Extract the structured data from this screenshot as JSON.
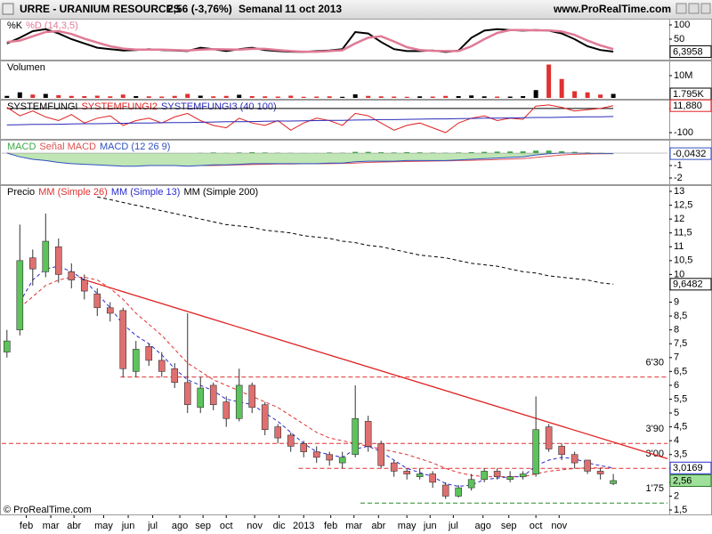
{
  "header": {
    "symbol": "URRE - URANIUM RESOURCES",
    "quote": "2,56 (-3,76%)",
    "period": "Semanal",
    "date": "11 oct 2013",
    "site": "www.ProRealTime.com"
  },
  "footer": "© ProRealTime.com",
  "chart_data": [
    {
      "type": "line",
      "xlim": [
        -0.4,
        51.2
      ],
      "ylim": [
        0,
        100
      ],
      "yticks": [
        100,
        50
      ],
      "series": [
        {
          "name": "%K",
          "color": "#000000",
          "width": 2,
          "values": [
            35,
            55,
            78,
            85,
            70,
            50,
            35,
            20,
            15,
            10,
            12,
            15,
            12,
            10,
            8,
            20,
            15,
            8,
            15,
            20,
            12,
            8,
            6,
            5,
            8,
            10,
            15,
            75,
            70,
            40,
            15,
            8,
            8,
            10,
            5,
            10,
            55,
            80,
            85,
            82,
            80,
            82,
            80,
            70,
            50,
            25,
            12,
            6.3958
          ],
          "value_labels": {
            "47": "6,3958"
          }
        },
        {
          "name": "%D (14,3,5)",
          "color": "#e07a95",
          "width": 2.5,
          "values": [
            40,
            45,
            60,
            75,
            78,
            68,
            52,
            38,
            25,
            17,
            13,
            13,
            13,
            12,
            10,
            13,
            15,
            14,
            13,
            16,
            16,
            12,
            8,
            6,
            6,
            8,
            11,
            35,
            55,
            60,
            42,
            22,
            12,
            9,
            8,
            8,
            25,
            50,
            72,
            82,
            82,
            81,
            81,
            77,
            65,
            45,
            28,
            15
          ]
        }
      ]
    },
    {
      "type": "bar",
      "xlim": [
        -0.4,
        51.2
      ],
      "ylim": [
        0,
        16000000
      ],
      "yticks": [
        {
          "value": 10000000,
          "label": "10M"
        }
      ],
      "series": [
        {
          "name": "Volumen",
          "up_color": "#000000",
          "down_color": "#e03030",
          "values": [
            900000,
            2500000,
            1500000,
            1800000,
            1200000,
            900000,
            800000,
            1000000,
            700000,
            1500000,
            800000,
            700000,
            600000,
            900000,
            1800000,
            1000000,
            700000,
            900000,
            1400000,
            800000,
            700000,
            600000,
            1000000,
            500000,
            600000,
            700000,
            500000,
            1600000,
            900000,
            700000,
            600000,
            500000,
            700000,
            600000,
            900000,
            800000,
            1100000,
            700000,
            600000,
            600000,
            800000,
            3500000,
            15000000,
            8500000,
            3000000,
            2500000,
            1500000,
            1795000
          ],
          "value_labels": {
            "47": "1.795K"
          }
        }
      ]
    },
    {
      "type": "line",
      "xlim": [
        -0.4,
        51.2
      ],
      "ylim": [
        -122,
        33
      ],
      "yticks": [
        0,
        -100
      ],
      "series": [
        {
          "name": "SYSTEMFUNGI",
          "color": "#000000",
          "width": 1,
          "values": [
            0,
            0,
            0,
            0,
            0,
            0,
            0,
            0,
            0,
            0,
            0,
            0,
            0,
            0,
            0,
            0,
            0,
            0,
            0,
            0,
            0,
            0,
            0,
            0,
            0,
            0,
            0,
            0,
            0,
            0,
            0,
            0,
            0,
            0,
            0,
            0,
            0,
            0,
            0,
            0,
            0,
            0,
            0,
            0,
            0,
            0,
            0,
            0
          ]
        },
        {
          "name": "SYSTEMFUNGI2",
          "color": "#e02020",
          "width": 1,
          "values": [
            5,
            -30,
            -10,
            -35,
            -50,
            -25,
            -60,
            -40,
            -30,
            -70,
            -50,
            -40,
            -60,
            -35,
            -20,
            -50,
            -70,
            -80,
            -40,
            -60,
            -70,
            -50,
            -90,
            -60,
            -40,
            -50,
            -70,
            -20,
            -30,
            -60,
            -90,
            -70,
            -60,
            -80,
            -100,
            -60,
            -40,
            -30,
            -50,
            -40,
            -45,
            10,
            15,
            5,
            -10,
            -5,
            0,
            11.88
          ],
          "value_labels": {
            "47": "11,880"
          }
        },
        {
          "name": "SYSTEMFUNGI3 (40 100)",
          "color": "#2a2ab8",
          "width": 1,
          "values": [
            -68,
            -67,
            -66,
            -66,
            -65,
            -64,
            -63,
            -63,
            -62,
            -61,
            -60,
            -60,
            -59,
            -58,
            -58,
            -57,
            -56,
            -55,
            -55,
            -54,
            -53,
            -52,
            -52,
            -51,
            -50,
            -49,
            -49,
            -48,
            -47,
            -46,
            -46,
            -45,
            -44,
            -43,
            -43,
            -42,
            -41,
            -40,
            -40,
            -39,
            -38,
            -37,
            -37,
            -36,
            -35,
            -34,
            -34,
            -33
          ]
        }
      ]
    },
    {
      "type": "combo",
      "xlim": [
        -0.4,
        51.2
      ],
      "ylim": [
        -2.43,
        0.86
      ],
      "yticks": [
        -1,
        -2
      ],
      "series": [
        {
          "name": "MACD",
          "mark": "bar",
          "color": "#3aa845",
          "values": [
            0,
            0,
            0,
            0,
            0,
            0,
            0,
            0,
            0,
            0,
            0,
            0,
            0,
            0,
            0,
            0.02,
            0.05,
            0.02,
            0.05,
            0.07,
            0.05,
            0.03,
            0.02,
            0.01,
            0.01,
            0.05,
            0.03,
            0.1,
            0.1,
            0.07,
            0.05,
            0.08,
            0.06,
            0.04,
            0.03,
            0.05,
            0.08,
            0.1,
            0.12,
            0.13,
            0.14,
            0.2,
            0.2,
            0.15,
            0.1,
            0.05,
            0.02,
            0
          ]
        },
        {
          "name": "Señal MACD",
          "mark": "line",
          "color": "#e05050",
          "values": [
            0,
            -0.1,
            -0.2,
            -0.3,
            -0.45,
            -0.55,
            -0.65,
            -0.75,
            -0.82,
            -0.9,
            -0.95,
            -0.98,
            -1.0,
            -1.0,
            -1.0,
            -1.0,
            -1.0,
            -0.97,
            -0.95,
            -0.92,
            -0.9,
            -0.88,
            -0.87,
            -0.86,
            -0.86,
            -0.85,
            -0.83,
            -0.8,
            -0.75,
            -0.72,
            -0.7,
            -0.68,
            -0.66,
            -0.64,
            -0.63,
            -0.6,
            -0.58,
            -0.55,
            -0.52,
            -0.48,
            -0.44,
            -0.35,
            -0.25,
            -0.15,
            -0.1,
            -0.07,
            -0.05,
            -0.04
          ]
        },
        {
          "name": "MACD (12 26 9)",
          "mark": "area",
          "color": "#3050c0",
          "fill": "#bfe6b4",
          "values": [
            0,
            -0.3,
            -0.5,
            -0.6,
            -0.75,
            -0.85,
            -0.9,
            -0.95,
            -1.0,
            -1.05,
            -1.05,
            -1.0,
            -1.0,
            -1.0,
            -1.05,
            -1.0,
            -0.95,
            -0.95,
            -0.9,
            -0.85,
            -0.85,
            -0.85,
            -0.85,
            -0.85,
            -0.85,
            -0.8,
            -0.8,
            -0.7,
            -0.65,
            -0.65,
            -0.65,
            -0.6,
            -0.6,
            -0.6,
            -0.6,
            -0.55,
            -0.5,
            -0.45,
            -0.4,
            -0.35,
            -0.3,
            -0.15,
            -0.05,
            0,
            0,
            -0.02,
            -0.03,
            -0.0432
          ],
          "value_labels": {
            "47": "-0,0432"
          }
        }
      ]
    },
    {
      "type": "candlestick",
      "name": "Precio",
      "xlim": [
        -0.4,
        51.2
      ],
      "ylim": [
        1.5,
        13
      ],
      "up_color": "#5cc45a",
      "down_color": "#e07070",
      "open": [
        7.2,
        8.0,
        10.6,
        10.1,
        11.0,
        10.1,
        9.8,
        9.3,
        8.8,
        8.7,
        6.5,
        7.4,
        6.9,
        6.6,
        6.1,
        5.2,
        6.0,
        5.4,
        4.8,
        6.0,
        5.3,
        4.5,
        4.2,
        3.9,
        3.6,
        3.5,
        3.2,
        3.5,
        4.7,
        3.9,
        3.2,
        2.9,
        2.7,
        2.8,
        2.4,
        2.0,
        2.3,
        2.6,
        2.9,
        2.6,
        2.7,
        2.8,
        4.5,
        3.8,
        3.5,
        3.3,
        2.9,
        2.45
      ],
      "high": [
        8.0,
        11.8,
        10.9,
        12.2,
        11.3,
        10.4,
        10.0,
        9.5,
        9.0,
        8.8,
        7.6,
        7.5,
        7.2,
        6.8,
        8.6,
        6.3,
        6.1,
        5.6,
        6.6,
        6.1,
        5.4,
        4.6,
        4.3,
        4.0,
        3.8,
        3.6,
        3.6,
        6.0,
        4.9,
        4.0,
        3.3,
        3.0,
        3.0,
        2.9,
        2.5,
        2.4,
        2.8,
        3.0,
        3.0,
        2.9,
        2.9,
        5.6,
        4.6,
        3.9,
        3.6,
        3.3,
        3.0,
        2.8
      ],
      "low": [
        7.0,
        7.8,
        9.6,
        9.9,
        9.7,
        9.5,
        9.1,
        8.5,
        8.3,
        6.3,
        6.3,
        6.7,
        6.3,
        5.9,
        5.0,
        5.0,
        5.1,
        4.5,
        4.7,
        5.0,
        4.2,
        3.9,
        3.6,
        3.4,
        3.2,
        3.1,
        3.0,
        3.4,
        3.6,
        3.0,
        2.7,
        2.6,
        2.6,
        2.3,
        1.9,
        1.95,
        2.2,
        2.5,
        2.6,
        2.5,
        2.6,
        2.7,
        3.6,
        3.3,
        3.0,
        2.8,
        2.6,
        2.4
      ],
      "close": [
        7.6,
        10.5,
        10.2,
        11.2,
        10.0,
        9.8,
        9.4,
        8.8,
        8.6,
        6.6,
        7.3,
        6.9,
        6.5,
        6.1,
        5.3,
        5.9,
        5.3,
        4.8,
        6.0,
        5.2,
        4.4,
        4.1,
        3.8,
        3.6,
        3.4,
        3.3,
        3.4,
        4.8,
        3.8,
        3.1,
        2.9,
        2.8,
        2.8,
        2.5,
        2.0,
        2.3,
        2.6,
        2.9,
        2.7,
        2.7,
        2.8,
        4.4,
        3.7,
        3.5,
        3.2,
        2.9,
        2.8,
        2.56
      ],
      "value_labels": {
        "47": "2,56"
      },
      "series": [
        {
          "name": "MM (Simple 26)",
          "color": "#e03030",
          "dash": true,
          "values": [
            null,
            8.8,
            9.2,
            9.6,
            9.8,
            9.9,
            9.9,
            9.8,
            9.5,
            9.1,
            8.6,
            8.2,
            7.8,
            7.3,
            6.8,
            6.5,
            6.2,
            6.0,
            5.8,
            5.6,
            5.4,
            5.2,
            4.9,
            4.6,
            4.3,
            4.1,
            4.0,
            3.9,
            3.8,
            3.7,
            3.6,
            3.5,
            3.35,
            3.2,
            3.0,
            2.85,
            2.75,
            2.7,
            2.7,
            2.7,
            2.7,
            2.8,
            2.9,
            2.95,
            3.0,
            3.02,
            3.02,
            3.0
          ]
        },
        {
          "name": "MM (Simple 13)",
          "color": "#2a2ad0",
          "dash": true,
          "values": [
            null,
            9.0,
            9.8,
            10.2,
            10.3,
            10.1,
            9.8,
            9.3,
            8.8,
            8.2,
            7.8,
            7.5,
            7.1,
            6.6,
            6.2,
            6.0,
            5.8,
            5.5,
            5.4,
            5.3,
            5.0,
            4.7,
            4.3,
            3.9,
            3.6,
            3.5,
            3.4,
            3.7,
            3.8,
            3.6,
            3.3,
            3.0,
            2.85,
            2.7,
            2.45,
            2.35,
            2.4,
            2.6,
            2.65,
            2.7,
            2.7,
            3.1,
            3.3,
            3.4,
            3.35,
            3.2,
            3.1,
            3.0169
          ],
          "value_labels": {
            "47": "3,0169"
          }
        },
        {
          "name": "MM (Simple 200)",
          "color": "#000000",
          "dash": true,
          "values": [
            null,
            null,
            null,
            null,
            null,
            null,
            null,
            12.8,
            12.7,
            12.6,
            12.5,
            12.4,
            12.3,
            12.2,
            12.1,
            12.0,
            11.9,
            11.8,
            11.75,
            11.7,
            11.6,
            11.55,
            11.5,
            11.4,
            11.35,
            11.3,
            11.2,
            11.15,
            11.05,
            11.0,
            10.9,
            10.8,
            10.7,
            10.65,
            10.6,
            10.5,
            10.4,
            10.35,
            10.3,
            10.2,
            10.1,
            10.05,
            9.95,
            9.9,
            9.85,
            9.8,
            9.7,
            9.6482
          ],
          "value_labels": {
            "47": "9,6482"
          }
        }
      ],
      "levels": [
        {
          "value": 6.3,
          "label": "6'30",
          "from": 8.8,
          "color": "#e03030"
        },
        {
          "value": 3.9,
          "label": "3'90",
          "from": -0.4,
          "color": "#e03030"
        },
        {
          "value": 3.0,
          "label": "3'00",
          "from": 22.6,
          "color": "#e03030"
        },
        {
          "value": 1.75,
          "label": "1'75",
          "from": 27.4,
          "color": "#2a8a2a"
        }
      ],
      "trendline": {
        "color": "#e02020",
        "points": [
          [
            5.7,
            9.85
          ],
          [
            51.2,
            3.35
          ]
        ]
      },
      "yticks": [
        13,
        {
          "value": 12.5,
          "label": "12,5"
        },
        12,
        {
          "value": 11.5,
          "label": "11,5"
        },
        11,
        {
          "value": 10.5,
          "label": "10,5"
        },
        10,
        9,
        {
          "value": 8.5,
          "label": "8,5"
        },
        8,
        {
          "value": 7.5,
          "label": "7,5"
        },
        7,
        {
          "value": 6.5,
          "label": "6,5"
        },
        6,
        {
          "value": 5.5,
          "label": "5,5"
        },
        5,
        {
          "value": 4.5,
          "label": "4,5"
        },
        4,
        {
          "value": 3.5,
          "label": "3,5"
        },
        3,
        {
          "value": 2.5,
          "label": "2,5"
        },
        2,
        {
          "value": 1.5,
          "label": "1,5"
        }
      ],
      "xticks": [
        {
          "value": 1.5,
          "label": "feb"
        },
        {
          "value": 3.4,
          "label": "mar"
        },
        {
          "value": 5.2,
          "label": "abr"
        },
        {
          "value": 7.5,
          "label": "may"
        },
        {
          "value": 9.4,
          "label": "jun"
        },
        {
          "value": 11.3,
          "label": "jul"
        },
        {
          "value": 13.4,
          "label": "ago"
        },
        {
          "value": 15.2,
          "label": "sep"
        },
        {
          "value": 17.0,
          "label": "oct"
        },
        {
          "value": 19.2,
          "label": "nov"
        },
        {
          "value": 21.1,
          "label": "dic"
        },
        {
          "value": 23.0,
          "label": "2013"
        },
        {
          "value": 25.1,
          "label": "feb"
        },
        {
          "value": 26.9,
          "label": "mar"
        },
        {
          "value": 28.8,
          "label": "abr"
        },
        {
          "value": 31.0,
          "label": "may"
        },
        {
          "value": 32.8,
          "label": "jun"
        },
        {
          "value": 34.6,
          "label": "jul"
        },
        {
          "value": 36.9,
          "label": "ago"
        },
        {
          "value": 38.9,
          "label": "sep"
        },
        {
          "value": 41.0,
          "label": "oct"
        },
        {
          "value": 42.8,
          "label": "nov"
        }
      ]
    }
  ]
}
